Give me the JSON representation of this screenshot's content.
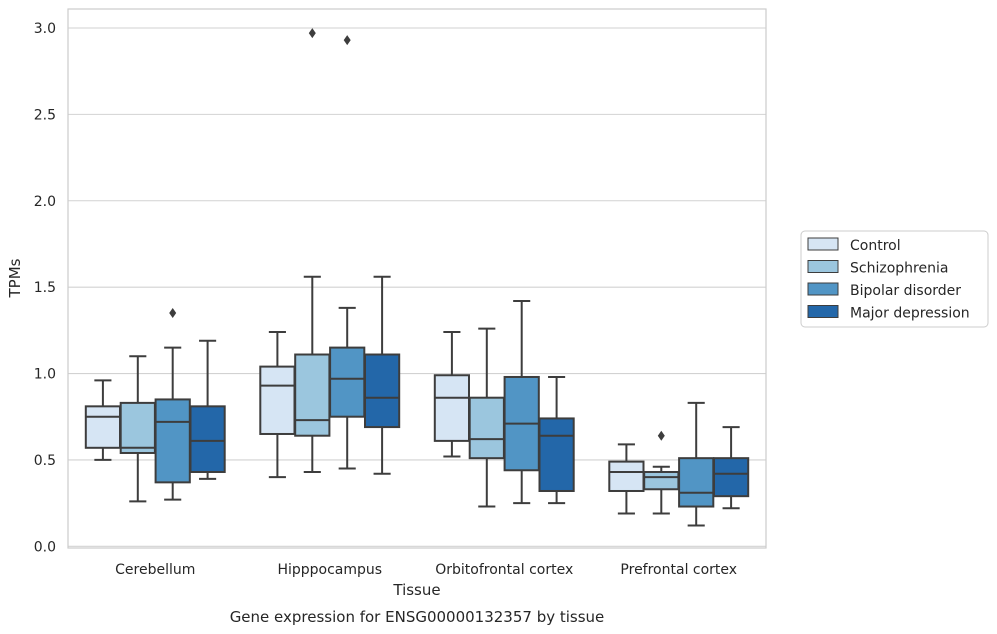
{
  "chart_data": {
    "type": "box",
    "title": "",
    "caption": "Gene expression for ENSG00000132357 by tissue",
    "xlabel": "Tissue",
    "ylabel": "TPMs",
    "ylim": [
      -0.01,
      3.11
    ],
    "yticks": [
      "0.0",
      "0.5",
      "1.0",
      "1.5",
      "2.0",
      "2.5",
      "3.0"
    ],
    "grid": "horizontal",
    "legend_position": "right",
    "categories": [
      "Cerebellum",
      "Hipppocampus",
      "Orbitofrontal cortex",
      "Prefrontal cortex"
    ],
    "series": [
      {
        "name": "Control",
        "color": "#d6e5f4",
        "boxes": [
          {
            "whisker_low": 0.5,
            "q1": 0.57,
            "median": 0.75,
            "q3": 0.81,
            "whisker_high": 0.96,
            "outliers": []
          },
          {
            "whisker_low": 0.4,
            "q1": 0.65,
            "median": 0.93,
            "q3": 1.04,
            "whisker_high": 1.24,
            "outliers": []
          },
          {
            "whisker_low": 0.52,
            "q1": 0.61,
            "median": 0.86,
            "q3": 0.99,
            "whisker_high": 1.24,
            "outliers": []
          },
          {
            "whisker_low": 0.19,
            "q1": 0.32,
            "median": 0.43,
            "q3": 0.49,
            "whisker_high": 0.59,
            "outliers": []
          }
        ]
      },
      {
        "name": "Schizophrenia",
        "color": "#9bc6de",
        "boxes": [
          {
            "whisker_low": 0.26,
            "q1": 0.54,
            "median": 0.57,
            "q3": 0.83,
            "whisker_high": 1.1,
            "outliers": []
          },
          {
            "whisker_low": 0.43,
            "q1": 0.64,
            "median": 0.73,
            "q3": 1.11,
            "whisker_high": 1.56,
            "outliers": [
              2.97
            ]
          },
          {
            "whisker_low": 0.23,
            "q1": 0.51,
            "median": 0.62,
            "q3": 0.86,
            "whisker_high": 1.26,
            "outliers": []
          },
          {
            "whisker_low": 0.19,
            "q1": 0.33,
            "median": 0.4,
            "q3": 0.43,
            "whisker_high": 0.46,
            "outliers": [
              0.64
            ]
          }
        ]
      },
      {
        "name": "Bipolar disorder",
        "color": "#5195c5",
        "boxes": [
          {
            "whisker_low": 0.27,
            "q1": 0.37,
            "median": 0.72,
            "q3": 0.85,
            "whisker_high": 1.15,
            "outliers": [
              1.35
            ]
          },
          {
            "whisker_low": 0.45,
            "q1": 0.75,
            "median": 0.97,
            "q3": 1.15,
            "whisker_high": 1.38,
            "outliers": [
              2.93
            ]
          },
          {
            "whisker_low": 0.25,
            "q1": 0.44,
            "median": 0.71,
            "q3": 0.98,
            "whisker_high": 1.42,
            "outliers": []
          },
          {
            "whisker_low": 0.12,
            "q1": 0.23,
            "median": 0.31,
            "q3": 0.51,
            "whisker_high": 0.83,
            "outliers": []
          }
        ]
      },
      {
        "name": "Major depression",
        "color": "#2367a9",
        "boxes": [
          {
            "whisker_low": 0.39,
            "q1": 0.43,
            "median": 0.61,
            "q3": 0.81,
            "whisker_high": 1.19,
            "outliers": []
          },
          {
            "whisker_low": 0.42,
            "q1": 0.69,
            "median": 0.86,
            "q3": 1.11,
            "whisker_high": 1.56,
            "outliers": []
          },
          {
            "whisker_low": 0.25,
            "q1": 0.32,
            "median": 0.64,
            "q3": 0.74,
            "whisker_high": 0.98,
            "outliers": []
          },
          {
            "whisker_low": 0.22,
            "q1": 0.29,
            "median": 0.42,
            "q3": 0.51,
            "whisker_high": 0.69,
            "outliers": []
          }
        ]
      }
    ]
  }
}
